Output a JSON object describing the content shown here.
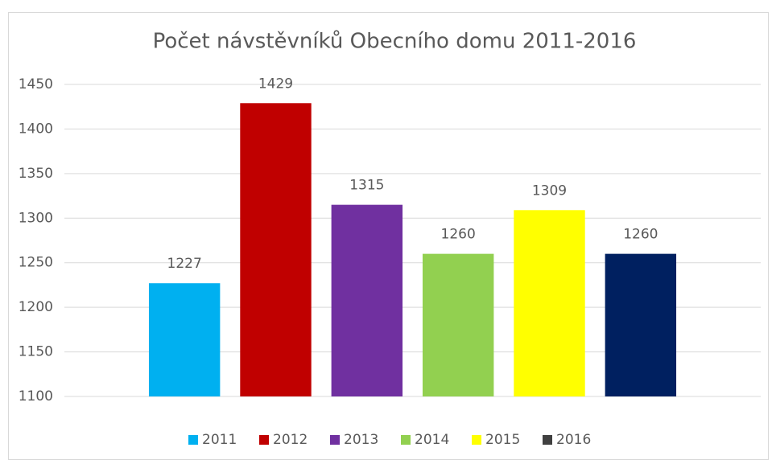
{
  "chart_data": {
    "type": "bar",
    "title": "Počet návstěvníků Obecního domu 2011-2016",
    "categories": [
      null
    ],
    "series": [
      {
        "name": "2011",
        "color": "#00b0f0",
        "values": [
          1227
        ]
      },
      {
        "name": "2012",
        "color": "#c00000",
        "values": [
          1429
        ]
      },
      {
        "name": "2013",
        "color": "#7030a0",
        "values": [
          1315
        ]
      },
      {
        "name": "2014",
        "color": "#92d050",
        "values": [
          1260
        ]
      },
      {
        "name": "2015",
        "color": "#ffff00",
        "values": [
          1309
        ]
      },
      {
        "name": "2016",
        "color": "#002060",
        "legend_color": "#404040",
        "values": [
          1260
        ]
      }
    ],
    "ylim": [
      1100,
      1450
    ],
    "yticks": [
      1100,
      1150,
      1200,
      1250,
      1300,
      1350,
      1400,
      1450
    ],
    "grid": true,
    "legend": "bottom"
  }
}
